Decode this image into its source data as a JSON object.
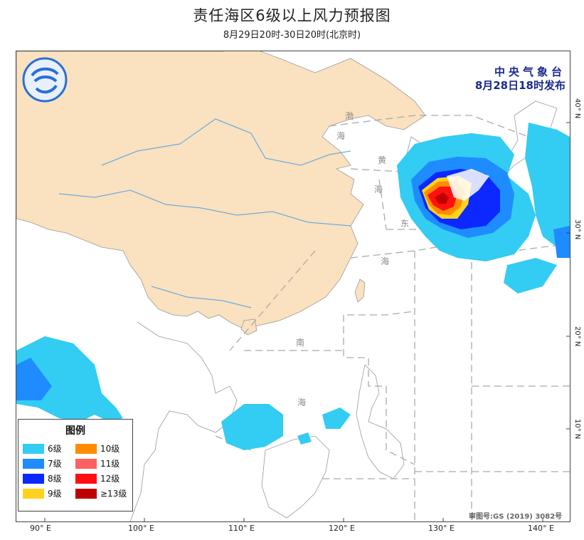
{
  "title": "责任海区6级以上风力预报图",
  "subtitle": "8月29日20时-30日20时(北京时)",
  "issuer": {
    "line1": "中央气象台",
    "line2": "8月28日18时发布"
  },
  "logo_icon": "cma-logo-icon",
  "sea_labels": {
    "bohai_1": "渤",
    "bohai_2": "海",
    "huanghai_1": "黄",
    "huanghai_2": "海",
    "donghai_1": "东",
    "donghai_2": "海",
    "nanhai_1": "南",
    "nanhai_2": "海"
  },
  "latitude_labels": {
    "lat40": "40° N",
    "lat30": "30° N",
    "lat20": "20° N",
    "lat10": "10° N"
  },
  "longitude_labels": {
    "lon90": "90° E",
    "lon100": "100° E",
    "lon110": "110° E",
    "lon120": "120° E",
    "lon130": "130° E",
    "lon140": "140° E"
  },
  "legend": {
    "title": "图例",
    "items": [
      {
        "label": "6级",
        "color": "#33ccf2"
      },
      {
        "label": "10级",
        "color": "#ff8c00"
      },
      {
        "label": "7级",
        "color": "#1e8cff"
      },
      {
        "label": "11级",
        "color": "#ff6060"
      },
      {
        "label": "8级",
        "color": "#0a28ff"
      },
      {
        "label": "12级",
        "color": "#ff1010"
      },
      {
        "label": "9级",
        "color": "#ffd21e"
      },
      {
        "label": "≥13级",
        "color": "#c00000"
      }
    ]
  },
  "approval_number": "审图号:GS (2019) 3082号",
  "colors": {
    "land_china": "#fae1bf",
    "land_other": "#ffffff",
    "sea": "#ffffff",
    "river": "#4aa3e8",
    "boundary": "#aaaaaa"
  }
}
